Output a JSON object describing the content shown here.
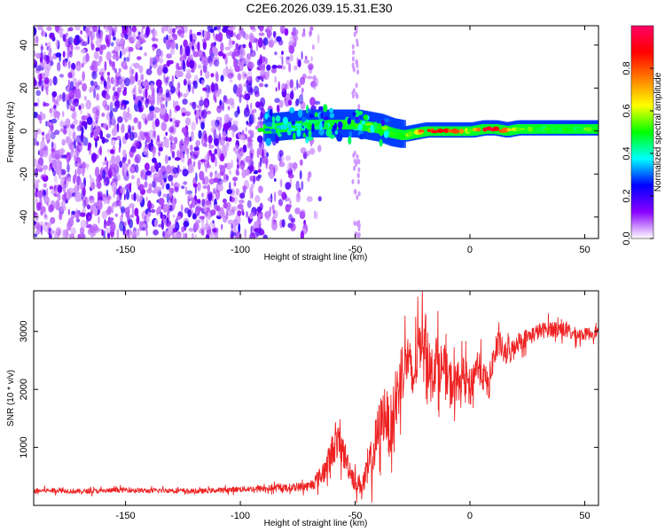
{
  "title": "C2E6.2026.039.15.31.E30",
  "chart_data": [
    {
      "type": "heatmap",
      "title": "C2E6.2026.039.15.31.E30",
      "xlabel": "Height of straight line (km)",
      "ylabel": "Frequency (Hz)",
      "xlim": [
        -190,
        56
      ],
      "ylim": [
        -50,
        49
      ],
      "xticks": [
        -150,
        -100,
        -50,
        0,
        50
      ],
      "yticks": [
        -40,
        -20,
        0,
        20,
        40
      ],
      "x_tick_labels": [
        "-150",
        "-100",
        "-50",
        "0",
        "50"
      ],
      "y_tick_labels": [
        "-40",
        "-20",
        "0",
        "20",
        "40"
      ],
      "colorbar": {
        "label": "Normalized spectral amplitude",
        "range": [
          0,
          1
        ],
        "ticks": [
          "0.0",
          "0.2",
          "0.4",
          "0.6",
          "0.8"
        ],
        "colors": [
          "#ffffff",
          "#8a00ff",
          "#0000ff",
          "#00ffff",
          "#00ff00",
          "#ffff00",
          "#ff8000",
          "#ff0000",
          "#ff0066"
        ]
      },
      "ridge": {
        "x": [
          -90,
          -80,
          -70,
          -60,
          -50,
          -45,
          -40,
          -35,
          -30,
          -25,
          -20,
          -15,
          -10,
          -5,
          0,
          5,
          10,
          15,
          20,
          30,
          40,
          50,
          56
        ],
        "frequency": [
          1,
          2,
          3,
          3,
          3,
          2,
          1,
          -1,
          -2,
          -1,
          0,
          0,
          0,
          0,
          0,
          1,
          1,
          0,
          1,
          1,
          1,
          1,
          1
        ],
        "amplitude": [
          0.3,
          0.35,
          0.45,
          0.55,
          0.5,
          0.55,
          0.6,
          0.6,
          0.55,
          0.65,
          0.8,
          0.85,
          0.9,
          0.85,
          0.6,
          0.9,
          0.95,
          0.8,
          0.6,
          0.5,
          0.5,
          0.55,
          0.55
        ]
      }
    },
    {
      "type": "line",
      "xlabel": "Height of straight line (km)",
      "ylabel": "SNR (10 * v/v)",
      "xlim": [
        -190,
        56
      ],
      "ylim": [
        0,
        3700
      ],
      "xticks": [
        -150,
        -100,
        -50,
        0,
        50
      ],
      "yticks": [
        1000,
        2000,
        3000
      ],
      "x_tick_labels": [
        "-150",
        "-100",
        "-50",
        "0",
        "50"
      ],
      "y_tick_labels": [
        "1000",
        "2000",
        "3000"
      ],
      "color": "#ee2222",
      "series": [
        {
          "name": "SNR",
          "x": [
            -190,
            -180,
            -170,
            -160,
            -150,
            -140,
            -130,
            -120,
            -110,
            -100,
            -90,
            -80,
            -70,
            -65,
            -62,
            -60,
            -58,
            -55,
            -52,
            -50,
            -47,
            -45,
            -42,
            -40,
            -37,
            -35,
            -32,
            -30,
            -27,
            -25,
            -22,
            -20,
            -17,
            -15,
            -12,
            -10,
            -7,
            -5,
            -2,
            0,
            3,
            5,
            8,
            10,
            13,
            15,
            18,
            20,
            25,
            30,
            35,
            40,
            45,
            50,
            56
          ],
          "y": [
            250,
            260,
            240,
            250,
            270,
            250,
            260,
            240,
            260,
            280,
            290,
            300,
            330,
            500,
            700,
            950,
            1100,
            900,
            600,
            400,
            350,
            500,
            900,
            1250,
            1650,
            1300,
            1800,
            2300,
            2550,
            2100,
            2800,
            3000,
            2200,
            2500,
            2350,
            2200,
            2050,
            2150,
            2250,
            2000,
            2450,
            2300,
            2050,
            2500,
            2800,
            2600,
            2650,
            2800,
            2900,
            3000,
            3050,
            3050,
            2950,
            2950,
            3000
          ],
          "noise": [
            60,
            60,
            60,
            60,
            60,
            60,
            60,
            60,
            60,
            70,
            80,
            90,
            120,
            250,
            350,
            400,
            450,
            400,
            300,
            250,
            250,
            400,
            600,
            700,
            700,
            700,
            800,
            800,
            700,
            700,
            700,
            700,
            700,
            700,
            600,
            600,
            550,
            500,
            450,
            450,
            400,
            400,
            380,
            350,
            300,
            300,
            280,
            250,
            220,
            200,
            200,
            200,
            180,
            150,
            150
          ]
        }
      ]
    }
  ]
}
